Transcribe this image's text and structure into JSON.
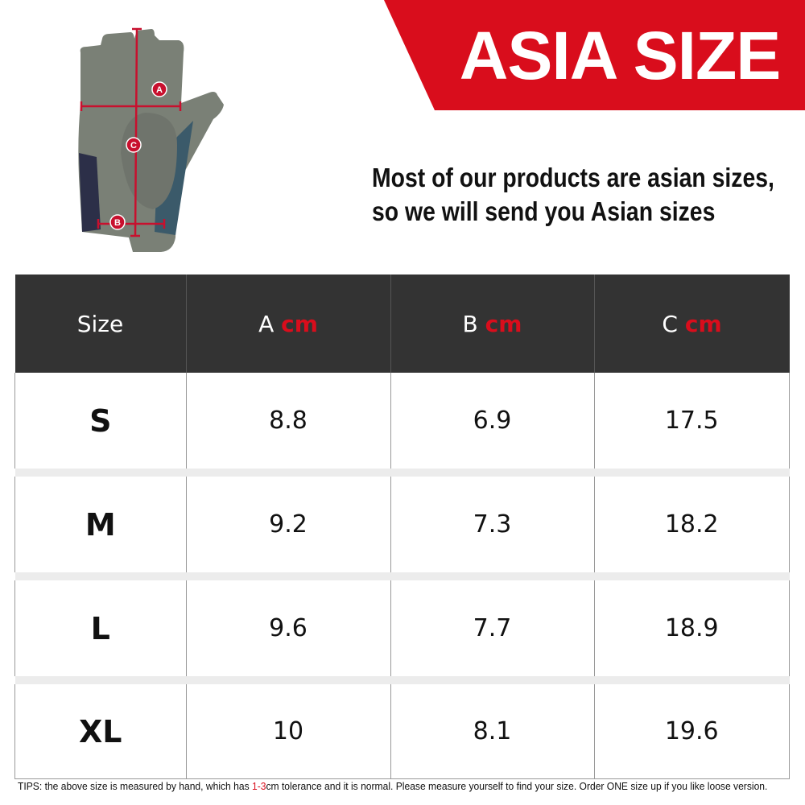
{
  "banner": {
    "title": "ASIA SIZE",
    "color": "#d90d1c"
  },
  "note": {
    "line1": "Most of our products are asian sizes,",
    "line2": "so we will send you Asian sizes"
  },
  "glove": {
    "markers": [
      "A",
      "B",
      "C"
    ]
  },
  "table": {
    "headers": [
      {
        "label": "Size",
        "unit": ""
      },
      {
        "label": "A",
        "unit": "cm"
      },
      {
        "label": "B",
        "unit": "cm"
      },
      {
        "label": "C",
        "unit": "cm"
      }
    ],
    "rows": [
      [
        "S",
        "8.8",
        "6.9",
        "17.5"
      ],
      [
        "M",
        "9.2",
        "7.3",
        "18.2"
      ],
      [
        "L",
        "9.6",
        "7.7",
        "18.9"
      ],
      [
        "XL",
        "10",
        "8.1",
        "19.6"
      ]
    ]
  },
  "tips": {
    "before": "TIPS:  the above size is measured by hand, which has ",
    "highlight": "1-3",
    "after": "cm tolerance and it is normal. Please measure yourself to find your size. Order ONE size up if you like loose version."
  }
}
